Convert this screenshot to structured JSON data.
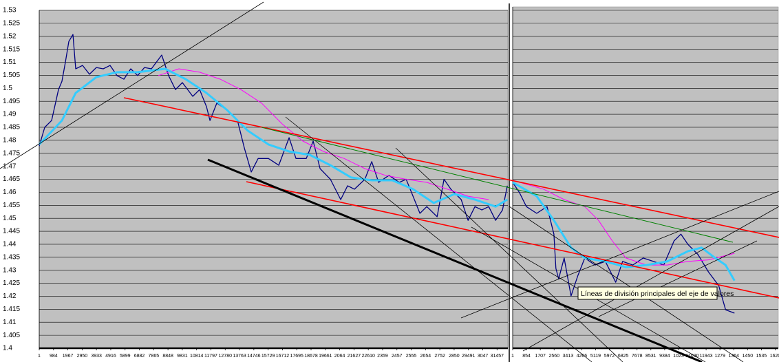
{
  "chart_data": [
    {
      "type": "line",
      "grid": true,
      "background": "#c0c0c0",
      "xlim": [
        1,
        32200
      ],
      "ylim": [
        1.4,
        1.53
      ],
      "yticks": [
        1.4,
        1.405,
        1.41,
        1.415,
        1.42,
        1.425,
        1.43,
        1.435,
        1.44,
        1.445,
        1.45,
        1.455,
        1.46,
        1.465,
        1.47,
        1.475,
        1.48,
        1.485,
        1.49,
        1.495,
        1.5,
        1.505,
        1.51,
        1.515,
        1.52,
        1.525,
        1.53
      ],
      "xticks": [
        1,
        984,
        1967,
        2950,
        3933,
        4916,
        5899,
        6882,
        7865,
        8848,
        9831,
        10814,
        11797,
        12780,
        13763,
        14746,
        15729,
        16712,
        17695,
        18678,
        19661,
        {
          "value": 20644,
          "label": "2064"
        },
        21627,
        22610,
        {
          "value": 23593,
          "label": "2359"
        },
        {
          "value": 24576,
          "label": "2457"
        },
        {
          "value": 25559,
          "label": "2555"
        },
        {
          "value": 26542,
          "label": "2654"
        },
        {
          "value": 27525,
          "label": "2752"
        },
        {
          "value": 28508,
          "label": "2850"
        },
        29491,
        {
          "value": 30474,
          "label": "3047"
        },
        31457
      ],
      "series": [
        {
          "color": "#000080",
          "width": 1.3,
          "x": [
            1,
            378,
            851,
            1324,
            1561,
            1797,
            2034,
            2318,
            2507,
            2980,
            3453,
            3926,
            4399,
            4872,
            5345,
            5818,
            6291,
            6764,
            7237,
            7710,
            8419,
            8892,
            9365,
            9838,
            10548,
            11021,
            11494,
            11730,
            12203,
            12913,
            13622,
            14095,
            14568,
            15041,
            15751,
            16460,
            17170,
            17643,
            18352,
            18825,
            19298,
            20008,
            20717,
            21190,
            21663,
            22373,
            22846,
            23319,
            24028,
            24738,
            25211,
            25684,
            26157,
            26630,
            27339,
            27812,
            28285,
            28995,
            29468,
            29941,
            30414,
            30887,
            31360,
            31833,
            32164
          ],
          "values": [
            1.4778,
            1.485,
            1.4876,
            1.4995,
            1.5027,
            1.51,
            1.518,
            1.5207,
            1.5075,
            1.5088,
            1.5054,
            1.508,
            1.5075,
            1.5088,
            1.5049,
            1.5035,
            1.5075,
            1.5049,
            1.508,
            1.5075,
            1.5128,
            1.5049,
            1.4995,
            1.5022,
            1.4969,
            1.4995,
            1.4929,
            1.4876,
            1.4943,
            1.4916,
            1.4876,
            1.477,
            1.4678,
            1.473,
            1.473,
            1.4704,
            1.481,
            1.473,
            1.473,
            1.4797,
            1.4691,
            1.465,
            1.4572,
            1.4625,
            1.4612,
            1.465,
            1.4718,
            1.4638,
            1.4665,
            1.4638,
            1.465,
            1.4585,
            1.4519,
            1.4545,
            1.4506,
            1.465,
            1.4612,
            1.4572,
            1.4492,
            1.4545,
            1.4532,
            1.4545,
            1.4492,
            1.4532,
            1.4625
          ]
        },
        {
          "color": "#ff00ff",
          "width": 1,
          "x": [
            8182,
            9601,
            11021,
            12440,
            13859,
            15278,
            16697,
            18116,
            19535,
            20954,
            22373,
            23792,
            25211,
            26630,
            28049,
            29468,
            30887
          ],
          "values": [
            1.5049,
            1.5075,
            1.5062,
            1.5035,
            1.4995,
            1.4943,
            1.4863,
            1.4797,
            1.4757,
            1.473,
            1.4691,
            1.4665,
            1.465,
            1.4638,
            1.4612,
            1.4585,
            1.4572
          ]
        },
        {
          "color": "#33ccff",
          "width": 3,
          "x": [
            1,
            1561,
            2507,
            3926,
            5345,
            6764,
            8655,
            10074,
            11494,
            12913,
            14332,
            15751,
            17170,
            18589,
            20008,
            21427,
            22846,
            24265,
            25684,
            27103,
            28522,
            29941,
            31360,
            32164
          ],
          "values": [
            1.4784,
            1.4876,
            1.4982,
            1.5043,
            1.5062,
            1.5062,
            1.5075,
            1.5035,
            1.4982,
            1.4916,
            1.4837,
            1.4784,
            1.4757,
            1.4744,
            1.4704,
            1.4657,
            1.4646,
            1.4646,
            1.4612,
            1.4559,
            1.4593,
            1.4572,
            1.4545,
            1.4572
          ]
        }
      ]
    },
    {
      "type": "line",
      "grid": true,
      "background": "#c0c0c0",
      "xlim": [
        1,
        16400
      ],
      "ylim": [
        1.4,
        1.53
      ],
      "xticks": [
        1,
        854,
        1707,
        2560,
        3413,
        4266,
        5119,
        5972,
        6825,
        7678,
        8531,
        9384,
        {
          "value": 10237,
          "label": "1023"
        },
        11090,
        11943,
        {
          "value": 12796,
          "label": "1279"
        },
        {
          "value": 13649,
          "label": "1364"
        },
        {
          "value": 14502,
          "label": "1450"
        },
        {
          "value": 15355,
          "label": "1535"
        },
        {
          "value": 16208,
          "label": "1620"
        }
      ],
      "series": [
        {
          "color": "#000080",
          "width": 1.3,
          "x": [
            1,
            424,
            848,
            1484,
            2120,
            2544,
            2671,
            2841,
            3180,
            3604,
            4028,
            4452,
            5088,
            5724,
            6360,
            6784,
            7420,
            8056,
            8692,
            9328,
            9964,
            10388,
            10812,
            11448,
            12084,
            12720,
            13144,
            13695
          ],
          "values": [
            1.4638,
            1.4598,
            1.4545,
            1.4519,
            1.4545,
            1.4439,
            1.4307,
            1.4267,
            1.4347,
            1.4201,
            1.428,
            1.4347,
            1.432,
            1.4334,
            1.4254,
            1.4334,
            1.432,
            1.4347,
            1.4334,
            1.432,
            1.4413,
            1.4439,
            1.44,
            1.436,
            1.4294,
            1.4241,
            1.4148,
            1.4135
          ]
        },
        {
          "color": "#ff00ff",
          "width": 1,
          "x": [
            1,
            1908,
            3180,
            4452,
            5300,
            6148,
            6996,
            8268,
            9540,
            10812,
            12084,
            13695
          ],
          "values": [
            1.4646,
            1.4612,
            1.4572,
            1.4545,
            1.4492,
            1.4413,
            1.4347,
            1.432,
            1.432,
            1.4334,
            1.434,
            1.4365
          ]
        },
        {
          "color": "#33ccff",
          "width": 3,
          "x": [
            1,
            1484,
            2544,
            3604,
            4452,
            5724,
            6996,
            8268,
            9540,
            10812,
            11660,
            12508,
            13144,
            13695
          ],
          "values": [
            1.4638,
            1.4585,
            1.4492,
            1.4387,
            1.4347,
            1.4334,
            1.4312,
            1.432,
            1.4334,
            1.4373,
            1.4387,
            1.4347,
            1.432,
            1.426
          ]
        }
      ]
    }
  ],
  "tooltip": "Líneas de división principales del eje de valores"
}
